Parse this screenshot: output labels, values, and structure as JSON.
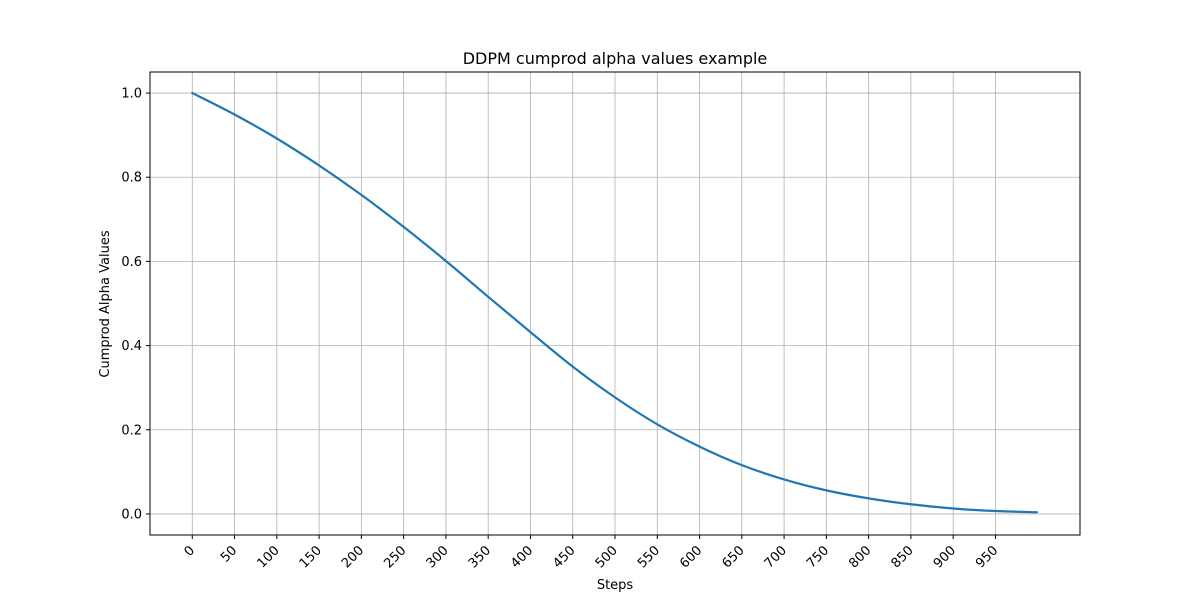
{
  "chart_data": {
    "type": "line",
    "title": "DDPM cumprod alpha values example",
    "xlabel": "Steps",
    "ylabel": "Cumprod Alpha Values",
    "xlim": [
      -50,
      1050
    ],
    "ylim": [
      -0.05,
      1.05
    ],
    "xticks": [
      0,
      50,
      100,
      150,
      200,
      250,
      300,
      350,
      400,
      450,
      500,
      550,
      600,
      650,
      700,
      750,
      800,
      850,
      900,
      950
    ],
    "xtick_labels": [
      "0",
      "50",
      "100",
      "150",
      "200",
      "250",
      "300",
      "350",
      "400",
      "450",
      "500",
      "550",
      "600",
      "650",
      "700",
      "750",
      "800",
      "850",
      "900",
      "950"
    ],
    "yticks": [
      0.0,
      0.2,
      0.4,
      0.6,
      0.8,
      1.0
    ],
    "ytick_labels": [
      "0.0",
      "0.2",
      "0.4",
      "0.6",
      "0.8",
      "1.0"
    ],
    "grid": true,
    "series_color": "#1f77b4",
    "series": [
      {
        "x": [
          0,
          50,
          100,
          150,
          200,
          250,
          300,
          350,
          400,
          450,
          500,
          550,
          600,
          650,
          700,
          750,
          800,
          850,
          900,
          950,
          999
        ],
        "values": [
          1.0,
          0.949,
          0.892,
          0.828,
          0.758,
          0.682,
          0.601,
          0.516,
          0.432,
          0.35,
          0.277,
          0.213,
          0.16,
          0.116,
          0.082,
          0.056,
          0.037,
          0.023,
          0.013,
          0.007,
          0.004
        ]
      }
    ]
  }
}
